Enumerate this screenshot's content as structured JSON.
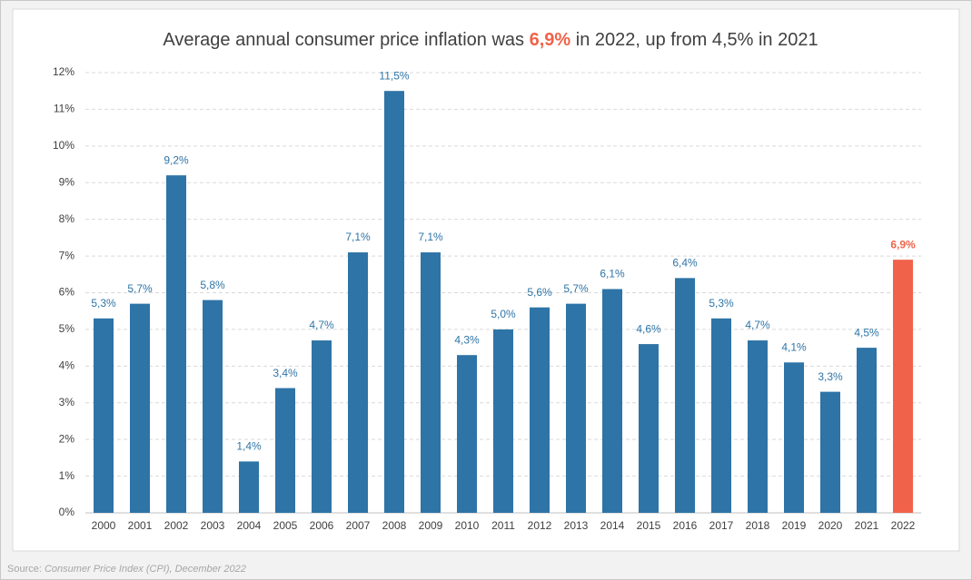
{
  "chart_data": {
    "type": "bar",
    "title": [
      "Average annual consumer price inflation was ",
      "6,9%",
      " in 2022, up from 4,5% in 2021"
    ],
    "categories": [
      "2000",
      "2001",
      "2002",
      "2003",
      "2004",
      "2005",
      "2006",
      "2007",
      "2008",
      "2009",
      "2010",
      "2011",
      "2012",
      "2013",
      "2014",
      "2015",
      "2016",
      "2017",
      "2018",
      "2019",
      "2020",
      "2021",
      "2022"
    ],
    "values": [
      5.3,
      5.7,
      9.2,
      5.8,
      1.4,
      3.4,
      4.7,
      7.1,
      11.5,
      7.1,
      4.3,
      5.0,
      5.6,
      5.7,
      6.1,
      4.6,
      6.4,
      5.3,
      4.7,
      4.1,
      3.3,
      4.5,
      6.9
    ],
    "value_labels": [
      "5,3%",
      "5,7%",
      "9,2%",
      "5,8%",
      "1,4%",
      "3,4%",
      "4,7%",
      "7,1%",
      "11,5%",
      "7,1%",
      "4,3%",
      "5,0%",
      "5,6%",
      "5,7%",
      "6,1%",
      "4,6%",
      "6,4%",
      "5,3%",
      "4,7%",
      "4,1%",
      "3,3%",
      "4,5%",
      "6,9%"
    ],
    "colors": [
      "#2e74a6",
      "#2e74a6",
      "#2e74a6",
      "#2e74a6",
      "#2e74a6",
      "#2e74a6",
      "#2e74a6",
      "#2e74a6",
      "#2e74a6",
      "#2e74a6",
      "#2e74a6",
      "#2e74a6",
      "#2e74a6",
      "#2e74a6",
      "#2e74a6",
      "#2e74a6",
      "#2e74a6",
      "#2e74a6",
      "#2e74a6",
      "#2e74a6",
      "#2e74a6",
      "#2e74a6",
      "#f0634a"
    ],
    "ylim": [
      0,
      12
    ],
    "yticks": [
      {
        "value": 0,
        "label": "0%"
      },
      {
        "value": 1,
        "label": "1%"
      },
      {
        "value": 2,
        "label": "2%"
      },
      {
        "value": 3,
        "label": "3%"
      },
      {
        "value": 4,
        "label": "4%"
      },
      {
        "value": 5,
        "label": "5%"
      },
      {
        "value": 6,
        "label": "6%"
      },
      {
        "value": 7,
        "label": "7%"
      },
      {
        "value": 8,
        "label": "8%"
      },
      {
        "value": 9,
        "label": "9%"
      },
      {
        "value": 10,
        "label": "10%"
      },
      {
        "value": 11,
        "label": "11%"
      },
      {
        "value": 12,
        "label": "12%"
      }
    ],
    "grid": true,
    "source_label": "Source:",
    "source": "Consumer Price Index (CPI), December 2022"
  }
}
